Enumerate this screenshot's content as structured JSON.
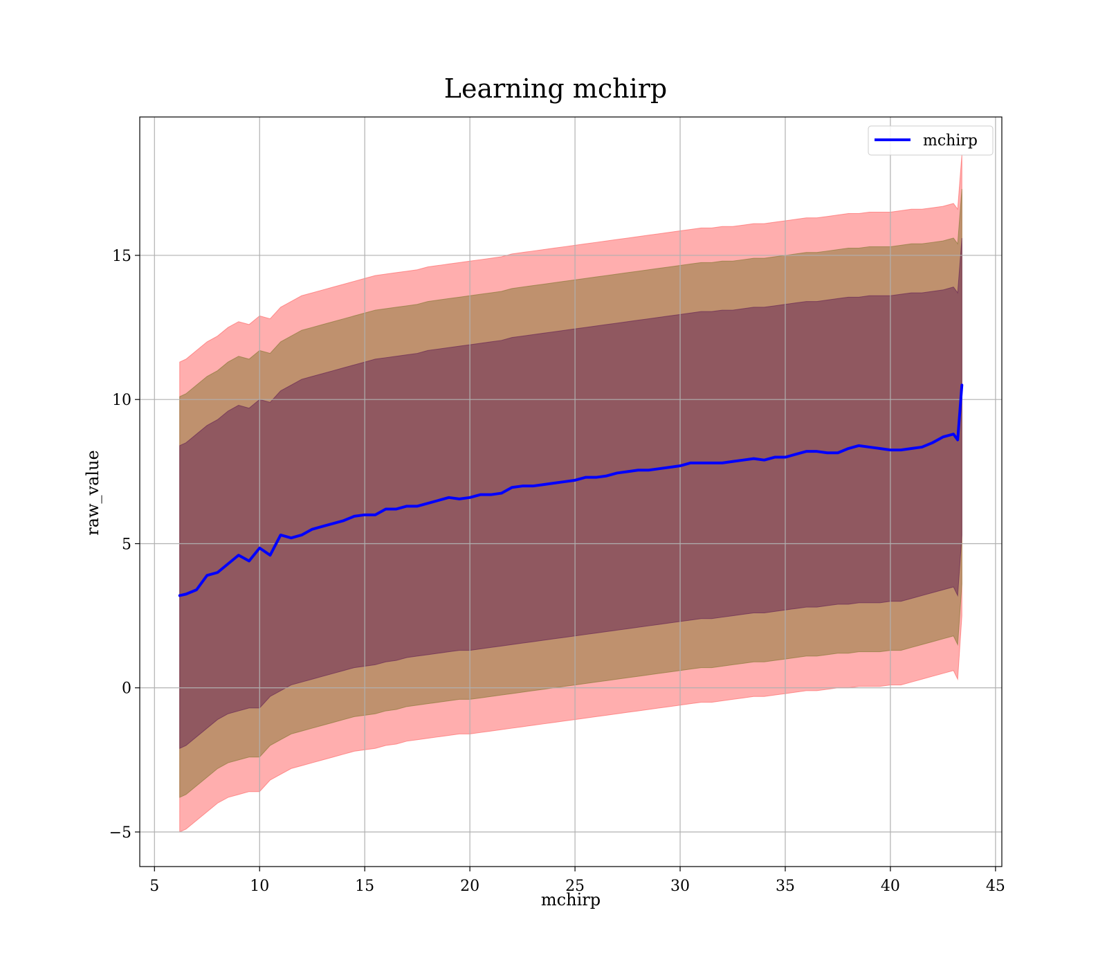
{
  "chart_data": {
    "type": "line",
    "title": "Learning mchirp",
    "xlabel": "mchirp",
    "ylabel": "raw_value",
    "xlim": [
      4.3,
      45.3
    ],
    "ylim": [
      -6.2,
      19.8
    ],
    "xticks": [
      5,
      10,
      15,
      20,
      25,
      30,
      35,
      40,
      45
    ],
    "yticks": [
      -5,
      0,
      5,
      10,
      15
    ],
    "xtick_labels": [
      "5",
      "10",
      "15",
      "20",
      "25",
      "30",
      "35",
      "40",
      "45"
    ],
    "ytick_labels": [
      "−5",
      "0",
      "5",
      "10",
      "15"
    ],
    "grid": true,
    "legend": {
      "position": "upper right",
      "entries": [
        "mchirp"
      ]
    },
    "colors": {
      "line": "#0000ff",
      "band_outer": "#ff6b6b",
      "band_middle": "#8b7a3a",
      "band_inner": "#6a2a55"
    },
    "x": [
      6.2,
      6.5,
      7,
      7.5,
      8,
      8.5,
      9,
      9.5,
      10,
      10.5,
      11,
      11.5,
      12,
      12.5,
      13,
      13.5,
      14,
      14.5,
      15,
      15.5,
      16,
      16.5,
      17,
      17.5,
      18,
      18.5,
      19,
      19.5,
      20,
      20.5,
      21,
      21.5,
      22,
      22.5,
      23,
      23.5,
      24,
      24.5,
      25,
      25.5,
      26,
      26.5,
      27,
      27.5,
      28,
      28.5,
      29,
      29.5,
      30,
      30.5,
      31,
      31.5,
      32,
      32.5,
      33,
      33.5,
      34,
      34.5,
      35,
      35.5,
      36,
      36.5,
      37,
      37.5,
      38,
      38.5,
      39,
      39.5,
      40,
      40.5,
      41,
      41.5,
      42,
      42.5,
      43,
      43.2,
      43.4
    ],
    "series": [
      {
        "name": "mchirp",
        "y": [
          3.2,
          3.25,
          3.4,
          3.9,
          4.0,
          4.3,
          4.6,
          4.4,
          4.85,
          4.6,
          5.3,
          5.2,
          5.3,
          5.5,
          5.6,
          5.7,
          5.8,
          5.95,
          6.0,
          6.0,
          6.2,
          6.2,
          6.3,
          6.3,
          6.4,
          6.5,
          6.6,
          6.55,
          6.6,
          6.7,
          6.7,
          6.75,
          6.95,
          7.0,
          7.0,
          7.05,
          7.1,
          7.15,
          7.2,
          7.3,
          7.3,
          7.35,
          7.45,
          7.5,
          7.55,
          7.55,
          7.6,
          7.65,
          7.7,
          7.8,
          7.8,
          7.8,
          7.8,
          7.85,
          7.9,
          7.95,
          7.9,
          8.0,
          8.0,
          8.1,
          8.2,
          8.2,
          8.15,
          8.15,
          8.3,
          8.4,
          8.35,
          8.3,
          8.25,
          8.25,
          8.3,
          8.35,
          8.5,
          8.7,
          8.8,
          8.6,
          10.5
        ]
      }
    ],
    "bands": [
      {
        "lower": [
          -5.0,
          -4.9,
          -4.6,
          -4.3,
          -4.0,
          -3.8,
          -3.7,
          -3.6,
          -3.6,
          -3.2,
          -3.0,
          -2.8,
          -2.7,
          -2.6,
          -2.5,
          -2.4,
          -2.3,
          -2.2,
          -2.15,
          -2.1,
          -2.0,
          -1.95,
          -1.85,
          -1.8,
          -1.75,
          -1.7,
          -1.65,
          -1.6,
          -1.6,
          -1.55,
          -1.5,
          -1.45,
          -1.4,
          -1.35,
          -1.3,
          -1.25,
          -1.2,
          -1.15,
          -1.1,
          -1.05,
          -1.0,
          -0.95,
          -0.9,
          -0.85,
          -0.8,
          -0.75,
          -0.7,
          -0.65,
          -0.6,
          -0.55,
          -0.5,
          -0.5,
          -0.45,
          -0.4,
          -0.35,
          -0.3,
          -0.3,
          -0.25,
          -0.2,
          -0.15,
          -0.1,
          -0.1,
          -0.05,
          0.0,
          0.0,
          0.05,
          0.05,
          0.05,
          0.1,
          0.1,
          0.2,
          0.3,
          0.4,
          0.5,
          0.6,
          0.3,
          2.5
        ],
        "upper": [
          11.3,
          11.4,
          11.7,
          12.0,
          12.2,
          12.5,
          12.7,
          12.6,
          12.9,
          12.8,
          13.2,
          13.4,
          13.6,
          13.7,
          13.8,
          13.9,
          14.0,
          14.1,
          14.2,
          14.3,
          14.35,
          14.4,
          14.45,
          14.5,
          14.6,
          14.65,
          14.7,
          14.75,
          14.8,
          14.85,
          14.9,
          14.95,
          15.05,
          15.1,
          15.15,
          15.2,
          15.25,
          15.3,
          15.35,
          15.4,
          15.45,
          15.5,
          15.55,
          15.6,
          15.65,
          15.7,
          15.75,
          15.8,
          15.85,
          15.9,
          15.95,
          15.95,
          16.0,
          16.0,
          16.05,
          16.1,
          16.1,
          16.15,
          16.2,
          16.25,
          16.3,
          16.3,
          16.35,
          16.4,
          16.45,
          16.45,
          16.5,
          16.5,
          16.5,
          16.55,
          16.6,
          16.6,
          16.65,
          16.7,
          16.8,
          16.6,
          18.5
        ]
      },
      {
        "lower": [
          -3.8,
          -3.7,
          -3.4,
          -3.1,
          -2.8,
          -2.6,
          -2.5,
          -2.4,
          -2.4,
          -2.0,
          -1.8,
          -1.6,
          -1.5,
          -1.4,
          -1.3,
          -1.2,
          -1.1,
          -1.0,
          -0.95,
          -0.9,
          -0.8,
          -0.75,
          -0.65,
          -0.6,
          -0.55,
          -0.5,
          -0.45,
          -0.4,
          -0.4,
          -0.35,
          -0.3,
          -0.25,
          -0.2,
          -0.15,
          -0.1,
          -0.05,
          0.0,
          0.05,
          0.1,
          0.15,
          0.2,
          0.25,
          0.3,
          0.35,
          0.4,
          0.45,
          0.5,
          0.55,
          0.6,
          0.65,
          0.7,
          0.7,
          0.75,
          0.8,
          0.85,
          0.9,
          0.9,
          0.95,
          1.0,
          1.05,
          1.1,
          1.1,
          1.15,
          1.2,
          1.2,
          1.25,
          1.25,
          1.25,
          1.3,
          1.3,
          1.4,
          1.5,
          1.6,
          1.7,
          1.8,
          1.5,
          3.6
        ],
        "upper": [
          10.1,
          10.2,
          10.5,
          10.8,
          11.0,
          11.3,
          11.5,
          11.4,
          11.7,
          11.6,
          12.0,
          12.2,
          12.4,
          12.5,
          12.6,
          12.7,
          12.8,
          12.9,
          13.0,
          13.1,
          13.15,
          13.2,
          13.25,
          13.3,
          13.4,
          13.45,
          13.5,
          13.55,
          13.6,
          13.65,
          13.7,
          13.75,
          13.85,
          13.9,
          13.95,
          14.0,
          14.05,
          14.1,
          14.15,
          14.2,
          14.25,
          14.3,
          14.35,
          14.4,
          14.45,
          14.5,
          14.55,
          14.6,
          14.65,
          14.7,
          14.75,
          14.75,
          14.8,
          14.8,
          14.85,
          14.9,
          14.9,
          14.95,
          15.0,
          15.05,
          15.1,
          15.1,
          15.15,
          15.2,
          15.25,
          15.25,
          15.3,
          15.3,
          15.3,
          15.35,
          15.4,
          15.4,
          15.45,
          15.5,
          15.6,
          15.4,
          17.3
        ]
      },
      {
        "lower": [
          -2.1,
          -2.0,
          -1.7,
          -1.4,
          -1.1,
          -0.9,
          -0.8,
          -0.7,
          -0.7,
          -0.3,
          -0.1,
          0.1,
          0.2,
          0.3,
          0.4,
          0.5,
          0.6,
          0.7,
          0.75,
          0.8,
          0.9,
          0.95,
          1.05,
          1.1,
          1.15,
          1.2,
          1.25,
          1.3,
          1.3,
          1.35,
          1.4,
          1.45,
          1.5,
          1.55,
          1.6,
          1.65,
          1.7,
          1.75,
          1.8,
          1.85,
          1.9,
          1.95,
          2.0,
          2.05,
          2.1,
          2.15,
          2.2,
          2.25,
          2.3,
          2.35,
          2.4,
          2.4,
          2.45,
          2.5,
          2.55,
          2.6,
          2.6,
          2.65,
          2.7,
          2.75,
          2.8,
          2.8,
          2.85,
          2.9,
          2.9,
          2.95,
          2.95,
          2.95,
          3.0,
          3.0,
          3.1,
          3.2,
          3.3,
          3.4,
          3.5,
          3.2,
          5.3
        ],
        "upper": [
          8.4,
          8.5,
          8.8,
          9.1,
          9.3,
          9.6,
          9.8,
          9.7,
          10.0,
          9.9,
          10.3,
          10.5,
          10.7,
          10.8,
          10.9,
          11.0,
          11.1,
          11.2,
          11.3,
          11.4,
          11.45,
          11.5,
          11.55,
          11.6,
          11.7,
          11.75,
          11.8,
          11.85,
          11.9,
          11.95,
          12.0,
          12.05,
          12.15,
          12.2,
          12.25,
          12.3,
          12.35,
          12.4,
          12.45,
          12.5,
          12.55,
          12.6,
          12.65,
          12.7,
          12.75,
          12.8,
          12.85,
          12.9,
          12.95,
          13.0,
          13.05,
          13.05,
          13.1,
          13.1,
          13.15,
          13.2,
          13.2,
          13.25,
          13.3,
          13.35,
          13.4,
          13.4,
          13.45,
          13.5,
          13.55,
          13.55,
          13.6,
          13.6,
          13.6,
          13.65,
          13.7,
          13.7,
          13.75,
          13.8,
          13.9,
          13.7,
          15.6
        ]
      }
    ]
  }
}
